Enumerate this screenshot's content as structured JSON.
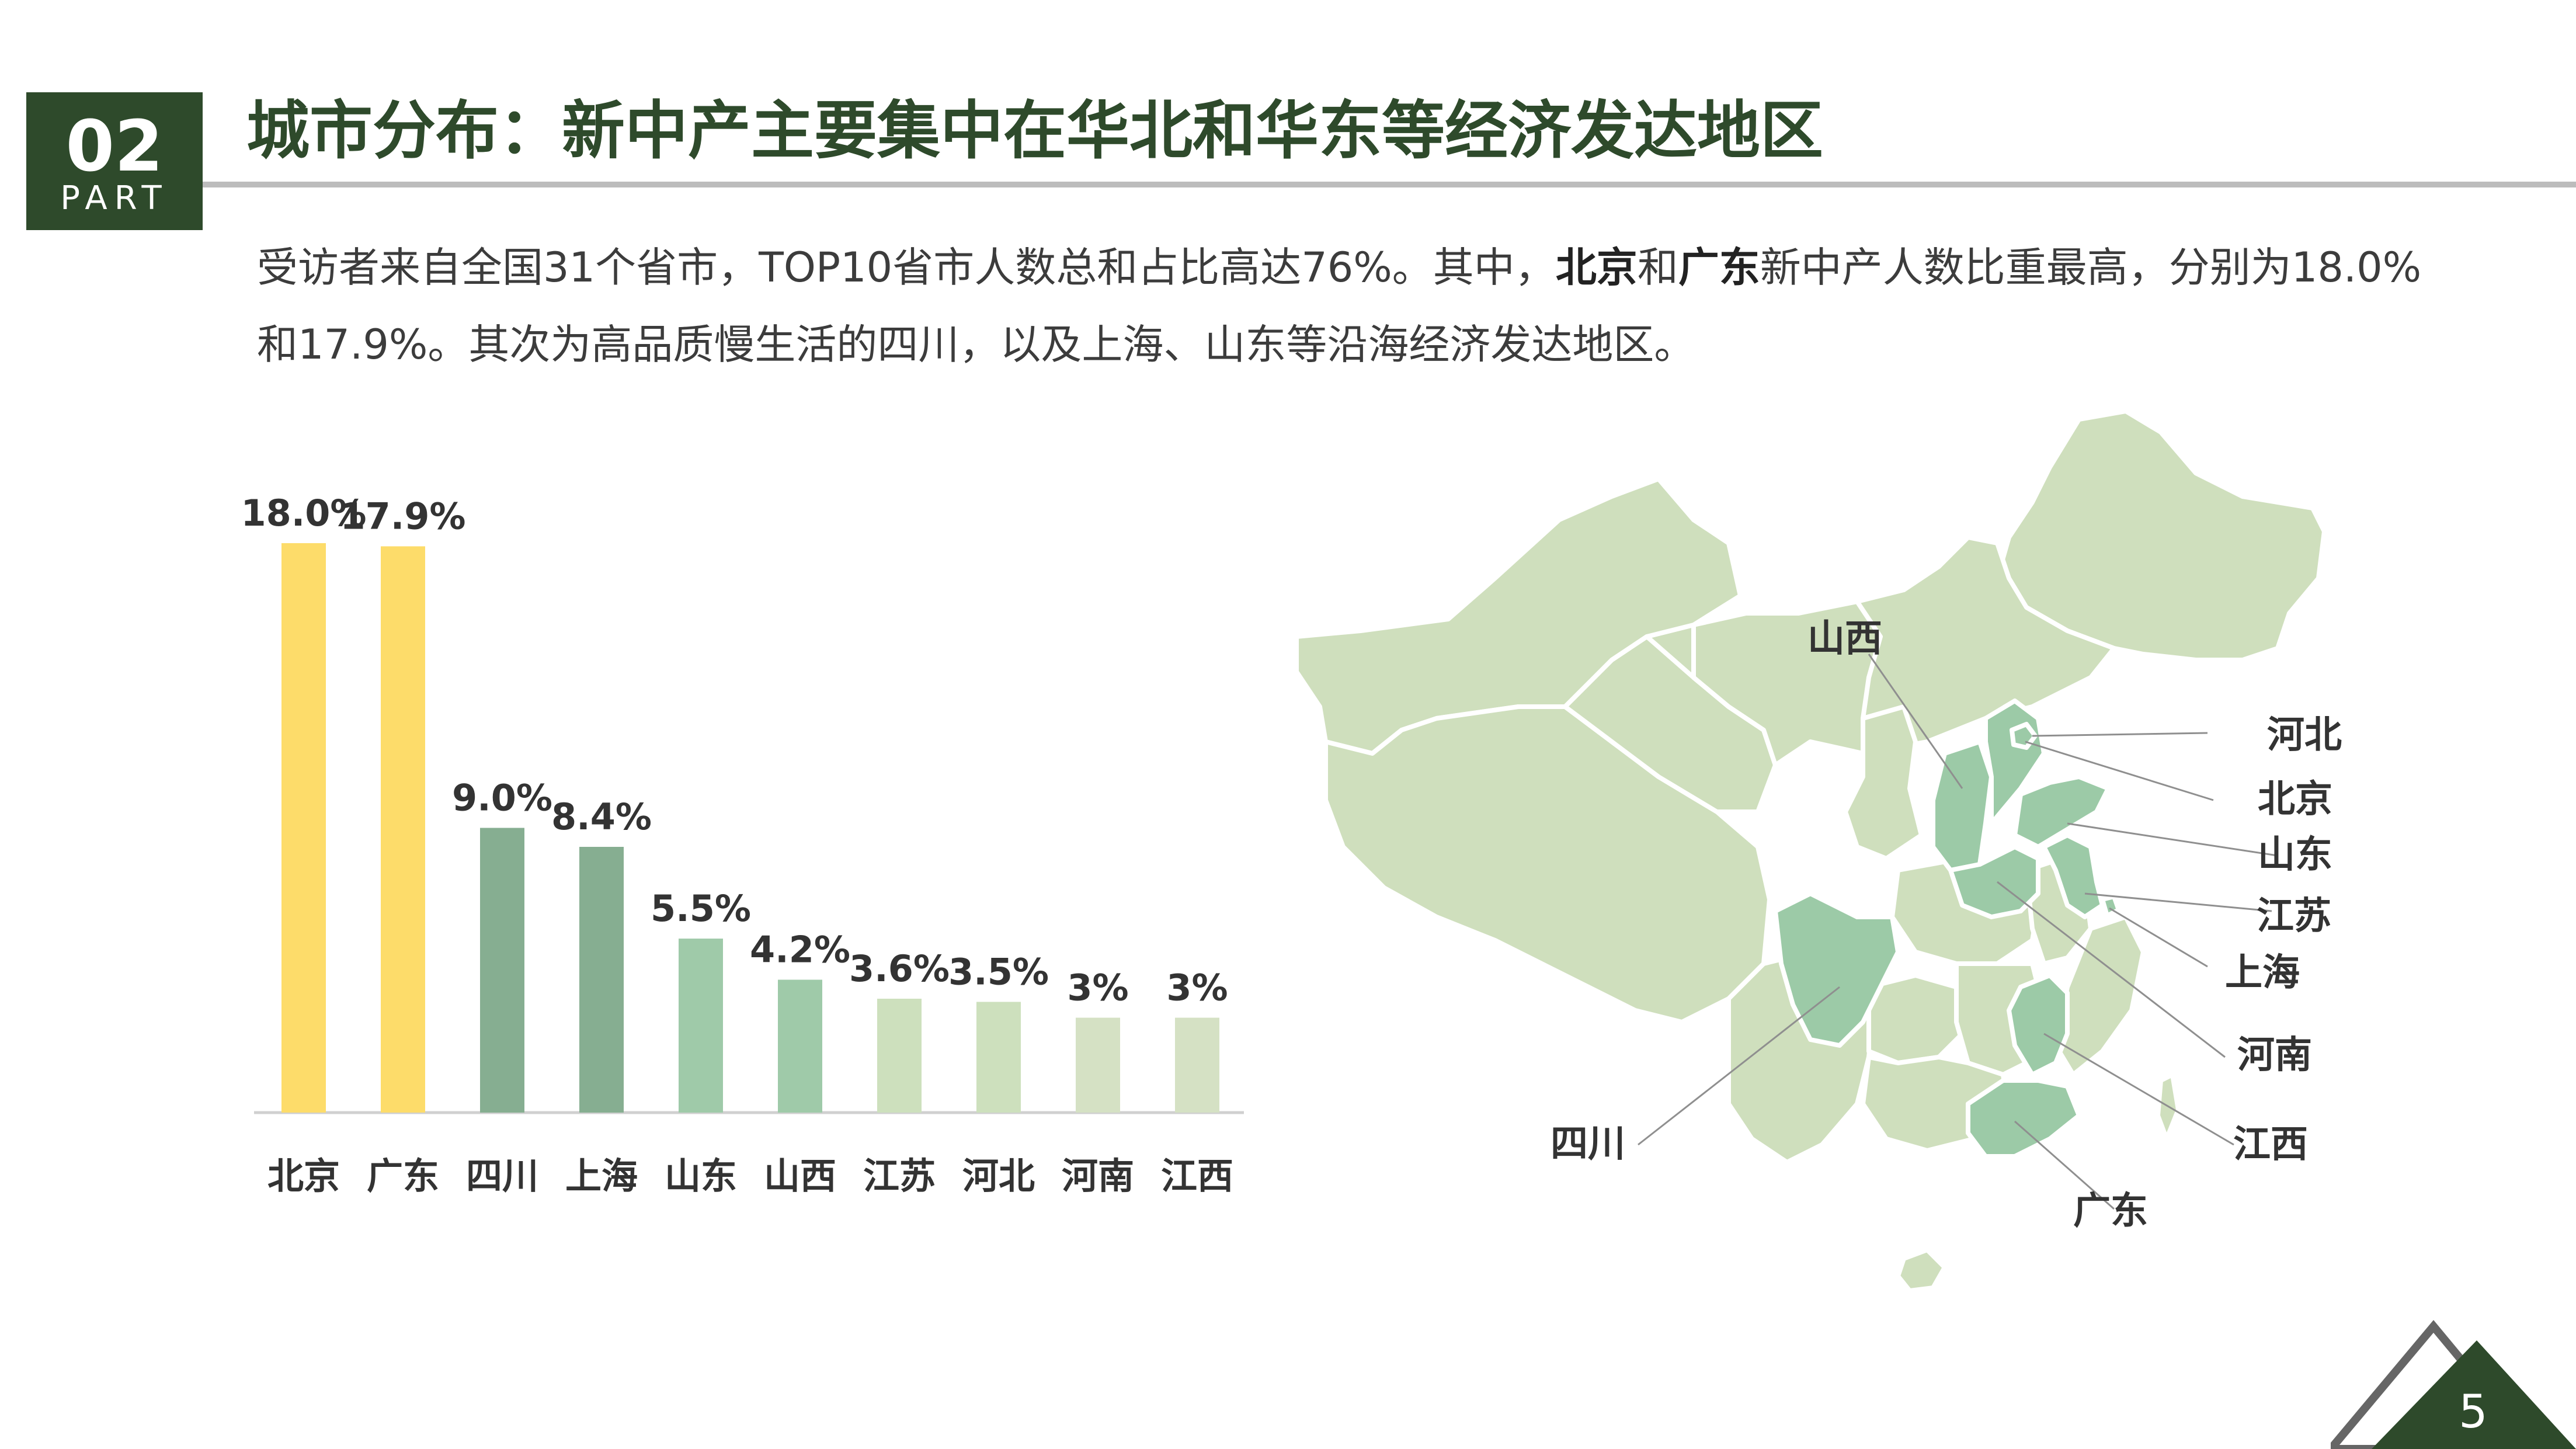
{
  "header": {
    "part_number": "02",
    "part_label": "PART"
  },
  "title": "城市分布：新中产主要集中在华北和华东等经济发达地区",
  "description": {
    "seg1": "受访者来自全国31个省市，TOP10省市人数总和占比高达76%。其中，",
    "bold1": "北京",
    "seg2": "和",
    "bold2": "广东",
    "seg3": "新中产人数比重最高，分别为18.0%和17.9%。其次为高品质慢生活的四川，以及上海、山东等沿海经济发达地区。"
  },
  "chart_data": {
    "type": "bar",
    "categories": [
      "北京",
      "广东",
      "四川",
      "上海",
      "山东",
      "山西",
      "江苏",
      "河北",
      "河南",
      "江西"
    ],
    "values": [
      18.0,
      17.9,
      9.0,
      8.4,
      5.5,
      4.2,
      3.6,
      3.5,
      3,
      3
    ],
    "data_labels": [
      "18.0%",
      "17.9%",
      "9.0%",
      "8.4%",
      "5.5%",
      "4.2%",
      "3.6%",
      "3.5%",
      "3%",
      "3%"
    ],
    "unit": "%",
    "ylim": [
      0,
      18.0
    ],
    "grid": false,
    "colors": [
      "#fddc6a",
      "#fddc6a",
      "#86ae91",
      "#86ae91",
      "#9fcaa9",
      "#9fcaa9",
      "#cde0bd",
      "#cde0bd",
      "#d5e1c4",
      "#d5e1c4"
    ]
  },
  "map": {
    "labels": [
      "山西",
      "河北",
      "北京",
      "山东",
      "江苏",
      "上海",
      "河南",
      "江西",
      "四川",
      "广东"
    ],
    "colors": {
      "base": "#cfdfbd",
      "highlight": "#9ccaa7",
      "border": "#ffffff",
      "leader": "#8f8f8f"
    }
  },
  "footer": {
    "page_number": "5"
  },
  "colors": {
    "brand": "#2e4a2b",
    "rule": "#bcbcbc",
    "text": "#3c3c3c",
    "corner_outline": "#666666"
  }
}
